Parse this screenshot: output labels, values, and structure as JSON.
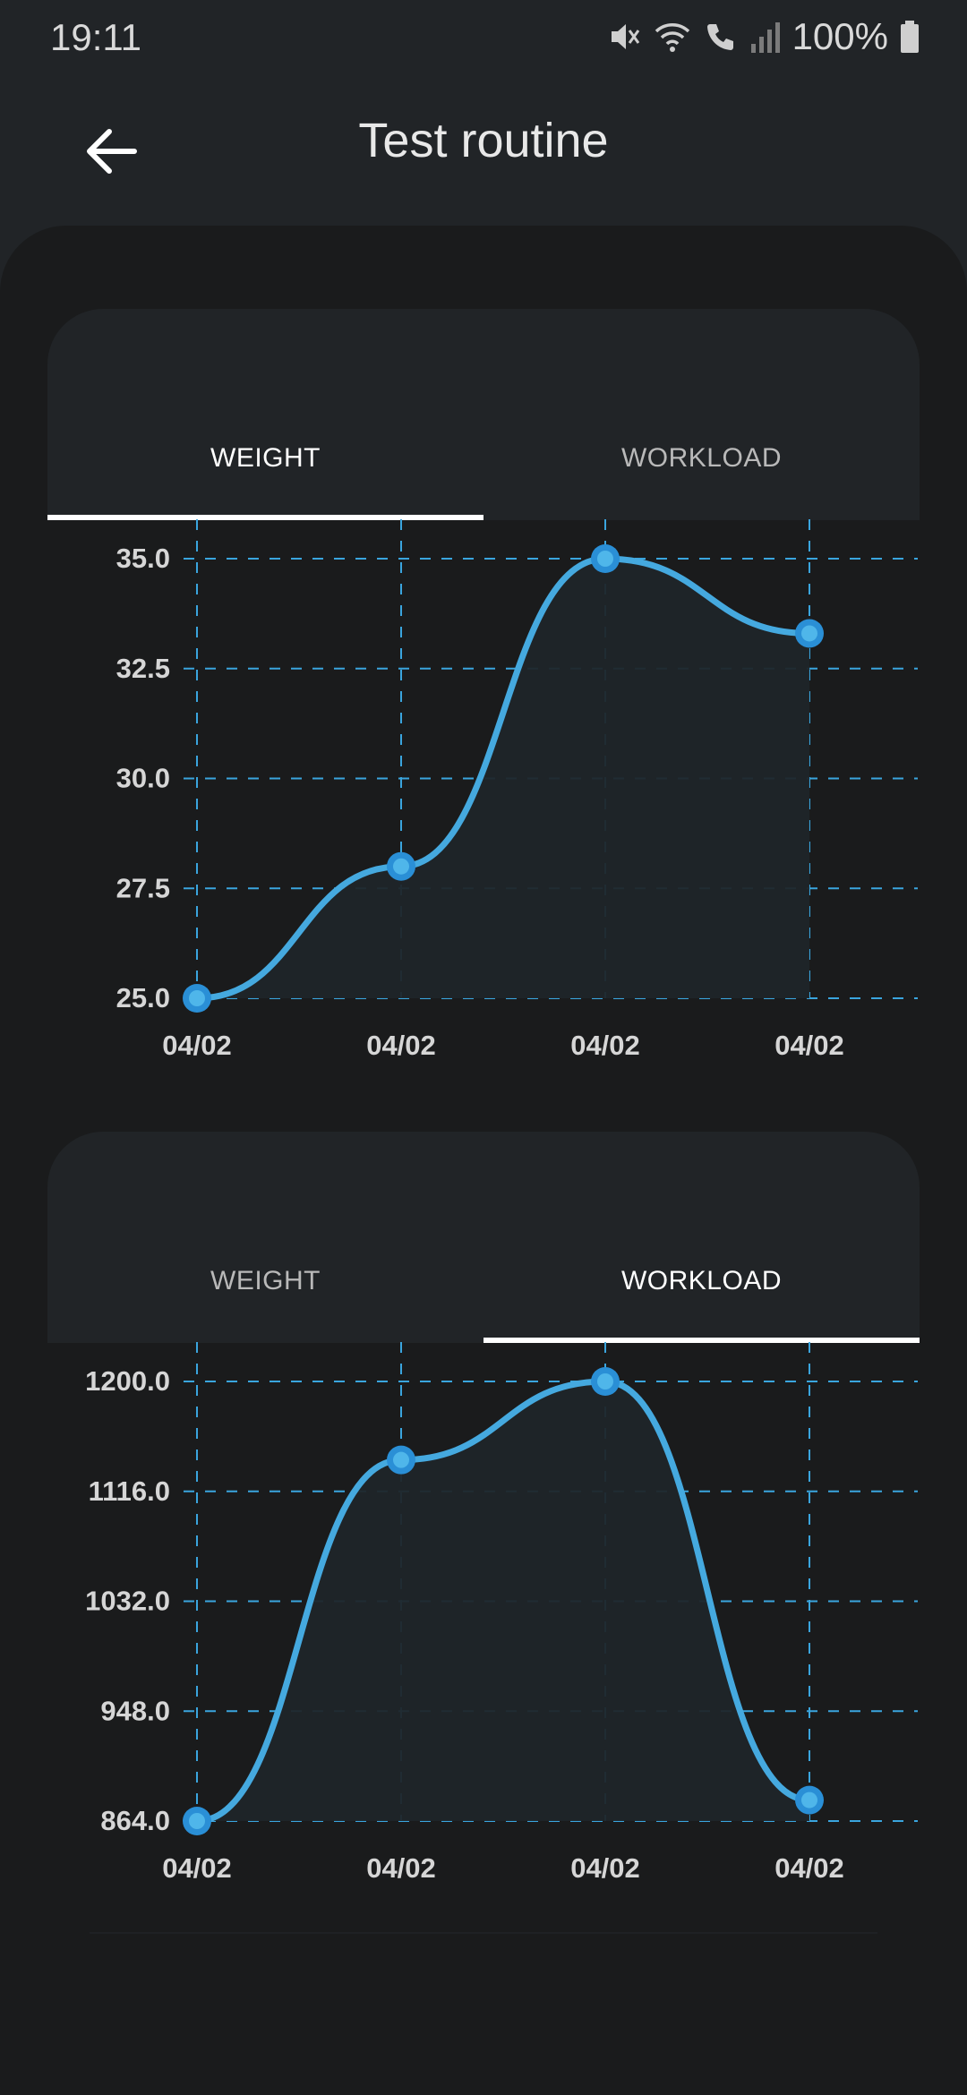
{
  "status_bar": {
    "time": "19:11",
    "battery": "100%",
    "icons": [
      "mute-icon",
      "wifi-icon",
      "wifi-call-icon",
      "signal-icon",
      "battery-icon"
    ]
  },
  "app_bar": {
    "back_icon": "arrow-left-icon",
    "title": "Test routine"
  },
  "colors": {
    "background": "#1a1b1c",
    "surface": "#212427",
    "accent": "#45a9df",
    "point": "#2a8fd6",
    "grid": "#3aa5de",
    "fill": "#1f2529",
    "tab_indicator": "#ffffff"
  },
  "cards": [
    {
      "tabs": [
        {
          "label": "WEIGHT",
          "active": true
        },
        {
          "label": "WORKLOAD",
          "active": false
        }
      ]
    },
    {
      "tabs": [
        {
          "label": "WEIGHT",
          "active": false
        },
        {
          "label": "WORKLOAD",
          "active": true
        }
      ]
    }
  ],
  "chart_data": [
    {
      "type": "area",
      "title": "",
      "xlabel": "",
      "ylabel": "",
      "categories": [
        "04/02",
        "04/02",
        "04/02",
        "04/02"
      ],
      "y_ticks": [
        "25.0",
        "27.5",
        "30.0",
        "32.5",
        "35.0"
      ],
      "ylim": [
        25.0,
        35.0
      ],
      "grid": true,
      "series": [
        {
          "values": [
            25.0,
            28.0,
            35.0,
            33.3
          ]
        }
      ]
    },
    {
      "type": "area",
      "title": "",
      "xlabel": "",
      "ylabel": "",
      "categories": [
        "04/02",
        "04/02",
        "04/02",
        "04/02"
      ],
      "y_ticks": [
        "864.0",
        "948.0",
        "1032.0",
        "1116.0",
        "1200.0"
      ],
      "ylim": [
        864.0,
        1200.0
      ],
      "grid": true,
      "series": [
        {
          "values": [
            864.0,
            1140.0,
            1200.0,
            880.0
          ]
        }
      ]
    }
  ]
}
